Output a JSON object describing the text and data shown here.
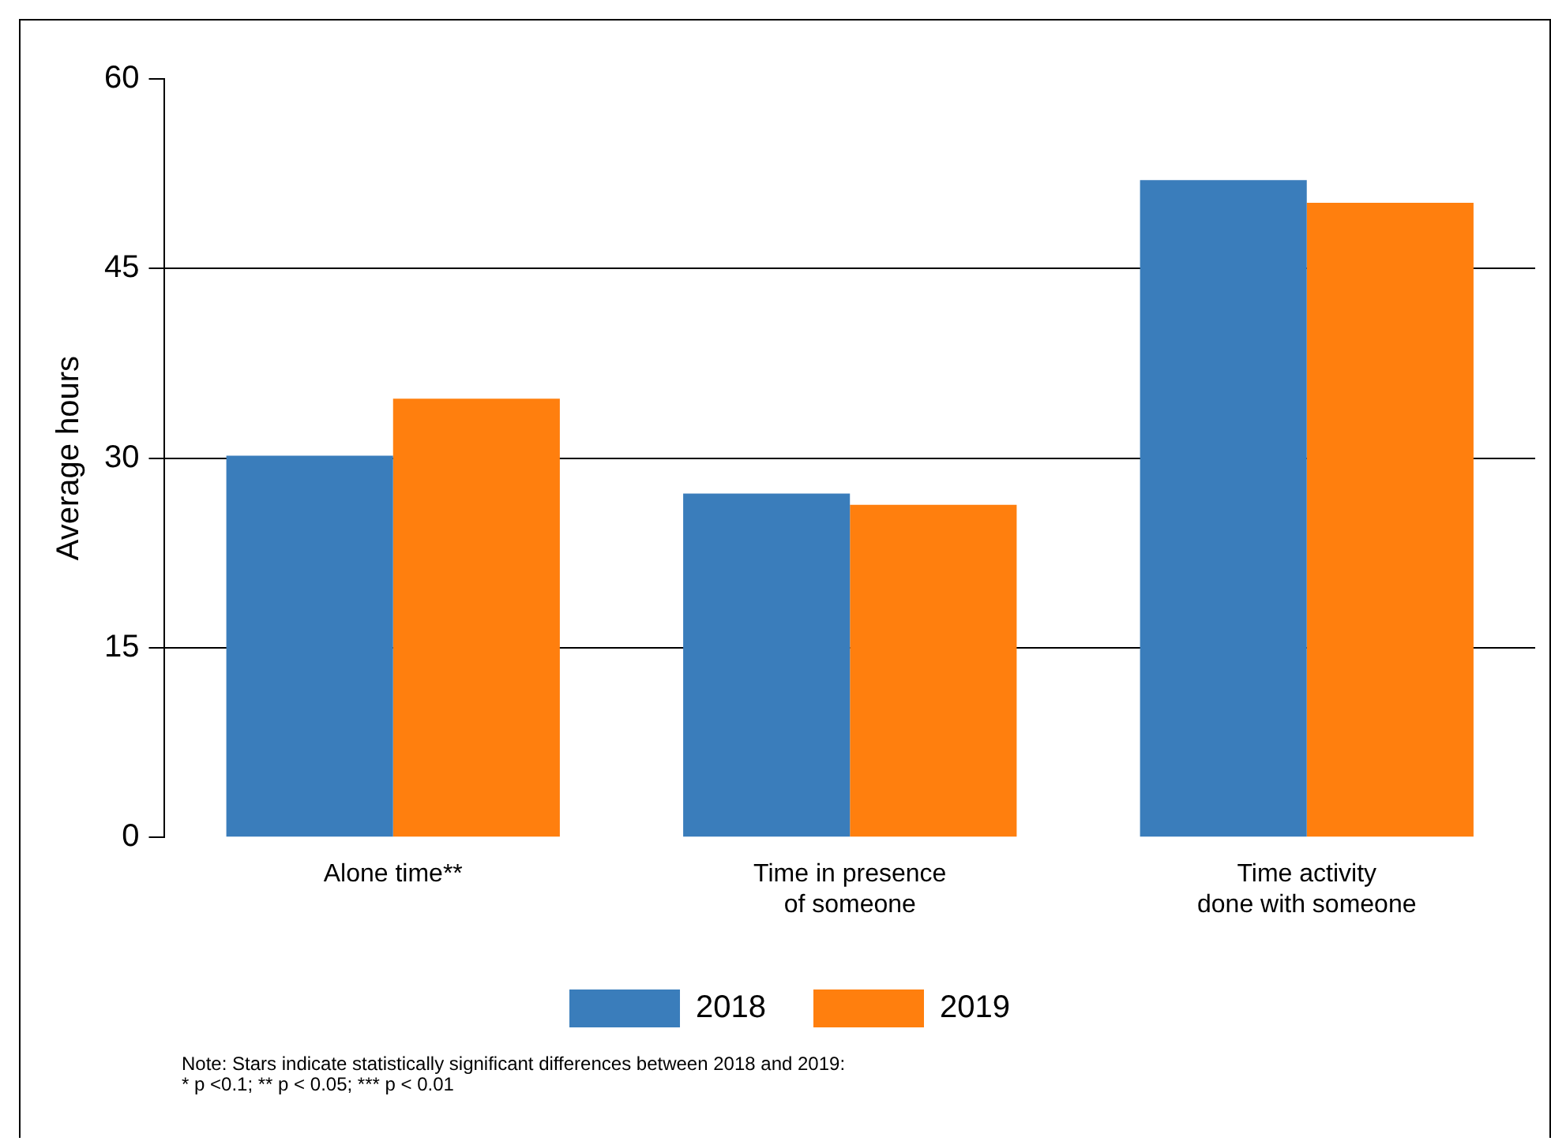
{
  "chart_data": {
    "type": "bar",
    "ylabel": "Average hours",
    "categories": [
      "Alone time**",
      "Time in presence of someone",
      "Time activity done with someone"
    ],
    "series": [
      {
        "name": "2018",
        "color": "#3a7dbb",
        "values": [
          30.2,
          27.2,
          52.0
        ]
      },
      {
        "name": "2019",
        "color": "#ff7f0e",
        "values": [
          34.7,
          26.3,
          50.2
        ]
      }
    ],
    "ylim": [
      0,
      60
    ],
    "yticks": [
      0,
      15,
      30,
      45,
      60
    ],
    "grid": "y",
    "legend": "bottom",
    "annotations": [
      "Note: Stars indicate statistically significant differences between 2018 and 2019:\n* p <0.1; ** p < 0.05; *** p < 0.01"
    ]
  }
}
